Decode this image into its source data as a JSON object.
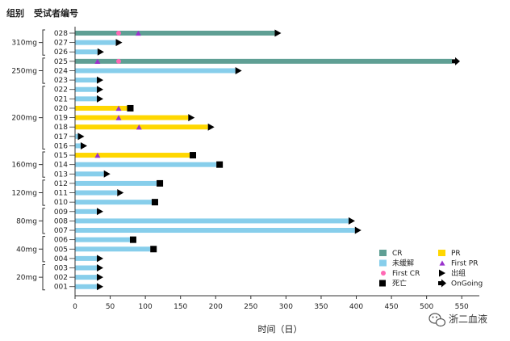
{
  "chart_data": {
    "type": "bar",
    "orientation": "horizontal",
    "header": {
      "group": "组别",
      "subject": "受试者编号"
    },
    "xlabel": "时间（日）",
    "xlim": [
      0,
      575
    ],
    "xticks": [
      0,
      50,
      100,
      150,
      200,
      250,
      300,
      350,
      400,
      450,
      500,
      550
    ],
    "groups": [
      {
        "label": "310mg",
        "subjects": [
          "028",
          "027",
          "026"
        ]
      },
      {
        "label": "250mg",
        "subjects": [
          "025",
          "024",
          "023"
        ]
      },
      {
        "label": "200mg",
        "subjects": [
          "022",
          "021",
          "020",
          "019",
          "018",
          "017",
          "016"
        ]
      },
      {
        "label": "160mg",
        "subjects": [
          "015",
          "014",
          "013"
        ]
      },
      {
        "label": "120mg",
        "subjects": [
          "012",
          "011",
          "010"
        ]
      },
      {
        "label": "80mg",
        "subjects": [
          "009",
          "008",
          "007"
        ]
      },
      {
        "label": "40mg",
        "subjects": [
          "006",
          "005",
          "004"
        ]
      },
      {
        "label": "20mg",
        "subjects": [
          "003",
          "002",
          "001"
        ]
      }
    ],
    "rows": [
      {
        "id": "028",
        "length": 284,
        "status": "CR",
        "end": "exit",
        "first_cr": 62,
        "first_pr": 90
      },
      {
        "id": "027",
        "length": 58,
        "status": "未缓解",
        "end": "exit"
      },
      {
        "id": "026",
        "length": 32,
        "status": "未缓解",
        "end": "exit"
      },
      {
        "id": "025",
        "length": 536,
        "status": "CR",
        "end": "ongoing",
        "first_cr": 62,
        "first_pr": 32
      },
      {
        "id": "024",
        "length": 228,
        "status": "未缓解",
        "end": "exit"
      },
      {
        "id": "023",
        "length": 31,
        "status": "未缓解",
        "end": "exit"
      },
      {
        "id": "022",
        "length": 31,
        "status": "未缓解",
        "end": "exit"
      },
      {
        "id": "021",
        "length": 31,
        "status": "未缓解",
        "end": "exit"
      },
      {
        "id": "020",
        "length": 74,
        "status": "PR",
        "end": "death",
        "first_pr": 62
      },
      {
        "id": "019",
        "length": 161,
        "status": "PR",
        "end": "exit",
        "first_pr": 62
      },
      {
        "id": "018",
        "length": 189,
        "status": "PR",
        "end": "exit",
        "first_pr": 91
      },
      {
        "id": "017",
        "length": 4,
        "status": "未缓解",
        "end": "exit"
      },
      {
        "id": "016",
        "length": 8,
        "status": "未缓解",
        "end": "exit"
      },
      {
        "id": "015",
        "length": 163,
        "status": "PR",
        "end": "death",
        "first_pr": 32
      },
      {
        "id": "014",
        "length": 201,
        "status": "未缓解",
        "end": "death"
      },
      {
        "id": "013",
        "length": 41,
        "status": "未缓解",
        "end": "exit"
      },
      {
        "id": "012",
        "length": 116,
        "status": "未缓解",
        "end": "death"
      },
      {
        "id": "011",
        "length": 60,
        "status": "未缓解",
        "end": "exit"
      },
      {
        "id": "010",
        "length": 109,
        "status": "未缓解",
        "end": "death"
      },
      {
        "id": "009",
        "length": 31,
        "status": "未缓解",
        "end": "exit"
      },
      {
        "id": "008",
        "length": 389,
        "status": "未缓解",
        "end": "exit"
      },
      {
        "id": "007",
        "length": 398,
        "status": "未缓解",
        "end": "exit"
      },
      {
        "id": "006",
        "length": 78,
        "status": "未缓解",
        "end": "death"
      },
      {
        "id": "005",
        "length": 107,
        "status": "未缓解",
        "end": "death"
      },
      {
        "id": "004",
        "length": 31,
        "status": "未缓解",
        "end": "exit"
      },
      {
        "id": "003",
        "length": 31,
        "status": "未缓解",
        "end": "exit"
      },
      {
        "id": "002",
        "length": 31,
        "status": "未缓解",
        "end": "exit"
      },
      {
        "id": "001",
        "length": 31,
        "status": "未缓解",
        "end": "exit"
      }
    ],
    "legend": {
      "position": "bottom-right",
      "items": [
        {
          "key": "CR",
          "label": "CR",
          "kind": "bar"
        },
        {
          "key": "PR",
          "label": "PR",
          "kind": "bar"
        },
        {
          "key": "未缓解",
          "label": "未缓解",
          "kind": "bar"
        },
        {
          "key": "first_pr",
          "label": "First PR",
          "kind": "triangle"
        },
        {
          "key": "first_cr",
          "label": "First CR",
          "kind": "dot"
        },
        {
          "key": "exit",
          "label": "出组",
          "kind": "exit"
        },
        {
          "key": "death",
          "label": "死亡",
          "kind": "square"
        },
        {
          "key": "ongoing",
          "label": "OnGoing",
          "kind": "ongoing"
        }
      ]
    },
    "colors": {
      "CR": "#5f9f94",
      "PR": "#ffd700",
      "未缓解": "#87ceeb",
      "first_cr": "#ff69b4",
      "first_pr": "#9932cc",
      "marker": "#000000",
      "axis": "#333333"
    }
  },
  "watermark": {
    "icon": "wechat-icon",
    "text": "浙二血液"
  }
}
